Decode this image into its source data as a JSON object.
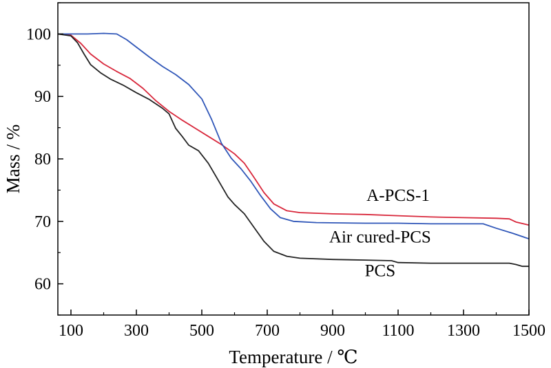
{
  "chart_data": {
    "type": "line",
    "xlabel": "Temperature / ℃",
    "ylabel": "Mass / %",
    "xlim": [
      60,
      1500
    ],
    "ylim": [
      55,
      105
    ],
    "x_ticks": [
      100,
      300,
      500,
      700,
      900,
      1100,
      1300,
      1500
    ],
    "y_ticks": [
      60,
      70,
      80,
      90,
      100
    ],
    "grid": false,
    "series": [
      {
        "name": "A-PCS-1",
        "color": "#d8263a",
        "points": [
          [
            60,
            100
          ],
          [
            100,
            99.8
          ],
          [
            130,
            98.5
          ],
          [
            160,
            96.8
          ],
          [
            200,
            95.2
          ],
          [
            240,
            94
          ],
          [
            280,
            92.9
          ],
          [
            320,
            91.3
          ],
          [
            360,
            89.3
          ],
          [
            400,
            87.6
          ],
          [
            440,
            86.2
          ],
          [
            480,
            84.9
          ],
          [
            520,
            83.6
          ],
          [
            560,
            82.3
          ],
          [
            600,
            80.8
          ],
          [
            630,
            79.3
          ],
          [
            660,
            77
          ],
          [
            690,
            74.6
          ],
          [
            720,
            72.8
          ],
          [
            760,
            71.7
          ],
          [
            800,
            71.4
          ],
          [
            900,
            71.2
          ],
          [
            1000,
            71.1
          ],
          [
            1100,
            70.9
          ],
          [
            1200,
            70.7
          ],
          [
            1300,
            70.6
          ],
          [
            1400,
            70.5
          ],
          [
            1440,
            70.4
          ],
          [
            1460,
            69.9
          ],
          [
            1500,
            69.4
          ]
        ]
      },
      {
        "name": "Air cured-PCS",
        "color": "#2f56b8",
        "points": [
          [
            60,
            100
          ],
          [
            100,
            100
          ],
          [
            150,
            100
          ],
          [
            200,
            100.1
          ],
          [
            240,
            100
          ],
          [
            270,
            99.1
          ],
          [
            300,
            97.9
          ],
          [
            340,
            96.3
          ],
          [
            380,
            94.8
          ],
          [
            420,
            93.5
          ],
          [
            460,
            91.9
          ],
          [
            500,
            89.6
          ],
          [
            530,
            86.3
          ],
          [
            560,
            82.5
          ],
          [
            590,
            80.1
          ],
          [
            620,
            78.4
          ],
          [
            650,
            76.4
          ],
          [
            680,
            74.1
          ],
          [
            710,
            72
          ],
          [
            740,
            70.6
          ],
          [
            780,
            70
          ],
          [
            850,
            69.8
          ],
          [
            1000,
            69.7
          ],
          [
            1100,
            69.7
          ],
          [
            1200,
            69.6
          ],
          [
            1300,
            69.6
          ],
          [
            1360,
            69.6
          ],
          [
            1400,
            68.9
          ],
          [
            1450,
            68.1
          ],
          [
            1500,
            67.2
          ]
        ]
      },
      {
        "name": "PCS",
        "color": "#222222",
        "points": [
          [
            60,
            100
          ],
          [
            100,
            99.7
          ],
          [
            120,
            98.6
          ],
          [
            140,
            96.8
          ],
          [
            160,
            95.1
          ],
          [
            190,
            93.8
          ],
          [
            220,
            92.8
          ],
          [
            260,
            91.8
          ],
          [
            300,
            90.6
          ],
          [
            340,
            89.5
          ],
          [
            380,
            88.1
          ],
          [
            400,
            87.2
          ],
          [
            420,
            84.9
          ],
          [
            440,
            83.6
          ],
          [
            460,
            82.2
          ],
          [
            490,
            81.3
          ],
          [
            520,
            79.3
          ],
          [
            550,
            76.6
          ],
          [
            580,
            73.9
          ],
          [
            600,
            72.7
          ],
          [
            630,
            71.2
          ],
          [
            660,
            69
          ],
          [
            690,
            66.8
          ],
          [
            720,
            65.2
          ],
          [
            760,
            64.4
          ],
          [
            800,
            64.1
          ],
          [
            900,
            63.9
          ],
          [
            1000,
            63.8
          ],
          [
            1080,
            63.7
          ],
          [
            1100,
            63.4
          ],
          [
            1200,
            63.3
          ],
          [
            1300,
            63.3
          ],
          [
            1440,
            63.3
          ],
          [
            1460,
            63.1
          ],
          [
            1480,
            62.8
          ],
          [
            1500,
            62.8
          ]
        ]
      }
    ],
    "annotations": [
      {
        "text": "A-PCS-1",
        "x": 1100,
        "y": 73.3,
        "color": "#d8263a"
      },
      {
        "text": "Air cured-PCS",
        "x": 1045,
        "y": 66.6,
        "color": "#2f56b8"
      },
      {
        "text": "PCS",
        "x": 1045,
        "y": 61.2,
        "color": "#000000"
      }
    ]
  }
}
